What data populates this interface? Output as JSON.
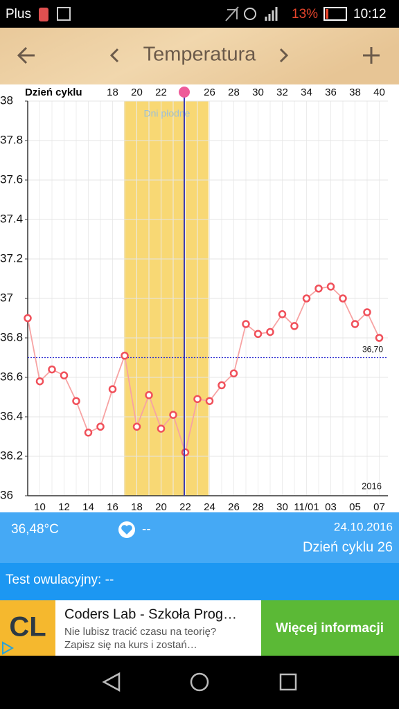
{
  "status_bar": {
    "carrier": "Plus",
    "battery": "13%",
    "time": "10:12"
  },
  "header": {
    "title": "Temperatura"
  },
  "chart_data": {
    "type": "line",
    "x2_axis_label": "Dzień cyklu",
    "categories": [
      null,
      "10",
      null,
      "12",
      null,
      "14",
      null,
      "16",
      null,
      "18",
      null,
      "20",
      null,
      "22",
      null,
      "24",
      null,
      "26",
      null,
      "28",
      null,
      "30",
      null,
      "11/01",
      null,
      "03",
      null,
      "05",
      null,
      "07"
    ],
    "x2_categories": [
      null,
      null,
      null,
      null,
      null,
      null,
      null,
      "18",
      null,
      "20",
      null,
      "22",
      null,
      null,
      null,
      "26",
      null,
      "28",
      null,
      "30",
      null,
      "32",
      null,
      "34",
      null,
      "36",
      null,
      "38",
      null,
      "40"
    ],
    "values": [
      36.9,
      36.58,
      36.64,
      36.61,
      36.48,
      36.32,
      36.35,
      36.54,
      36.71,
      36.35,
      36.51,
      36.34,
      36.41,
      36.22,
      36.49,
      36.48,
      36.56,
      36.62,
      36.87,
      36.82,
      36.83,
      36.92,
      36.86,
      37.0,
      37.05,
      37.06,
      37.0,
      36.87,
      36.93,
      36.8
    ],
    "color": "#f7a3a3",
    "marker_color": "#f0505a",
    "ylim": [
      36,
      38
    ],
    "yticks": [
      36,
      36.2,
      36.4,
      36.6,
      36.8,
      37,
      37.2,
      37.4,
      37.6,
      37.8,
      38
    ],
    "grid": true,
    "reference_line": {
      "value": 36.7,
      "label": "36,70"
    },
    "fertile_label": "Dni płodne",
    "year_label": "2016"
  },
  "info": {
    "temperature": "36,48°C",
    "heart_value": "--",
    "date": "24.10.2016",
    "cycle_day": "Dzień cyklu 26"
  },
  "ovulation_test": "Test owulacyjny: --",
  "ad": {
    "logo": "CL",
    "title": "Coders Lab - Szkoła Prog…",
    "line1": "Nie lubisz tracić czasu na teorię?",
    "line2": "Zapisz się na kurs i zostań…",
    "button": "Więcej informacji"
  }
}
